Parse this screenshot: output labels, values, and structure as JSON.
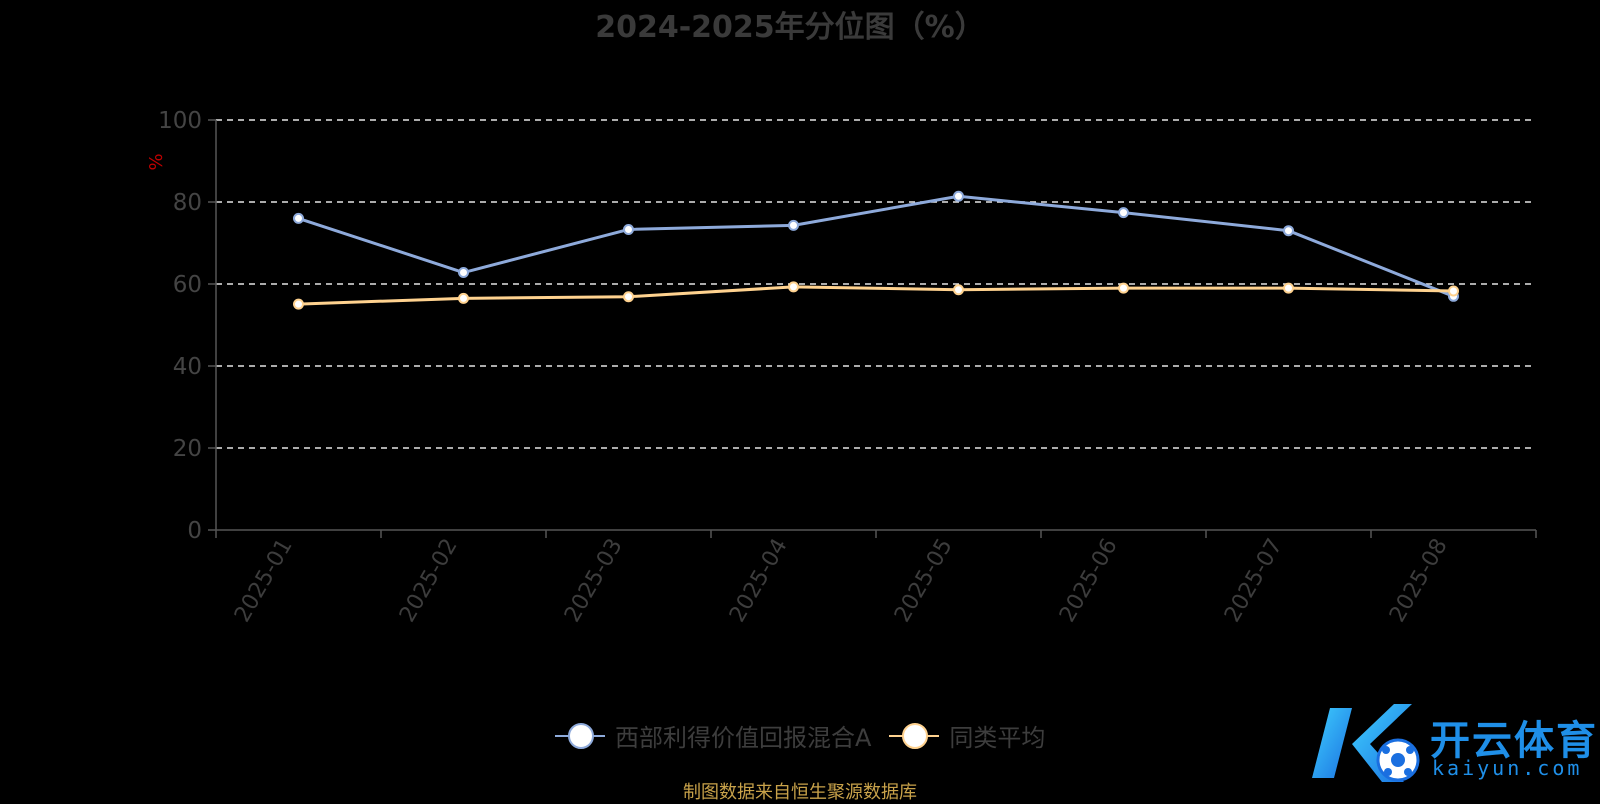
{
  "chart_data": {
    "type": "line",
    "title": "2024-2025年分位图（%）",
    "ylabel": "%",
    "ylim": [
      0,
      100
    ],
    "yticks": [
      0,
      20,
      40,
      60,
      80,
      100
    ],
    "categories": [
      "2025-01",
      "2025-02",
      "2025-03",
      "2025-04",
      "2025-05",
      "2025-06",
      "2025-07",
      "2025-08"
    ],
    "grid": true,
    "legend_position": "bottom-center",
    "series": [
      {
        "name": "西部利得价值回报混合A",
        "color": "#8eaadb",
        "values": [
          76.0,
          62.8,
          73.3,
          74.3,
          81.4,
          77.4,
          73.0,
          57.0
        ]
      },
      {
        "name": "同类平均",
        "color": "#ffd28f",
        "values": [
          55.1,
          56.5,
          56.9,
          59.3,
          58.6,
          59.0,
          59.0,
          58.3
        ]
      }
    ]
  },
  "source_note": "制图数据来自恒生聚源数据库",
  "logo": {
    "text": "开云体育",
    "sub": "kaiyun.com"
  }
}
